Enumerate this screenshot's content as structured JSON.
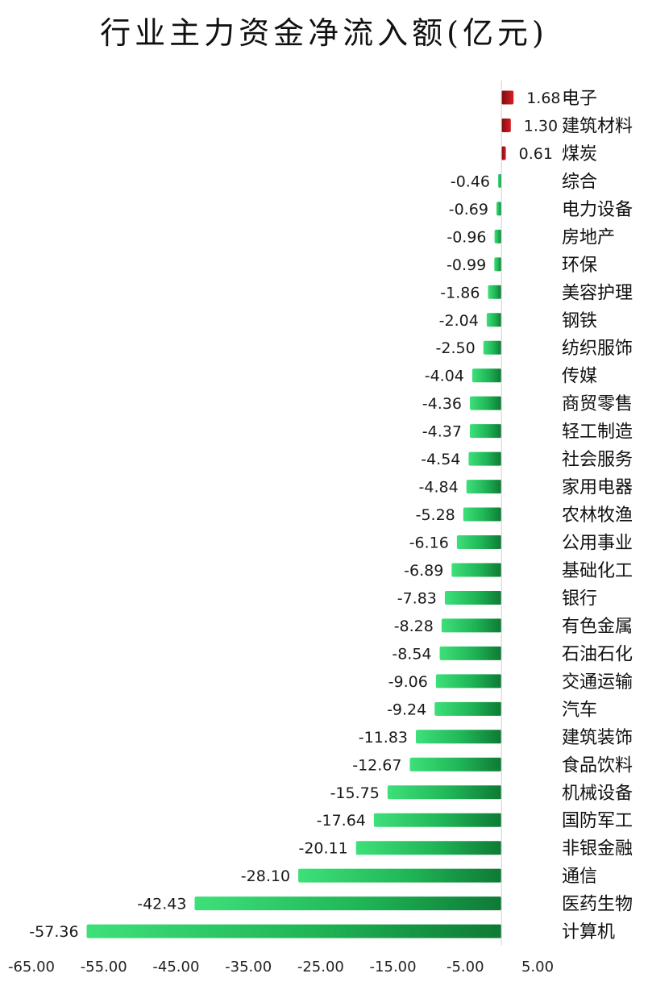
{
  "chart_data": {
    "type": "bar",
    "orientation": "horizontal",
    "title": "行业主力资金净流入额(亿元)",
    "categories": [
      "电子",
      "建筑材料",
      "煤炭",
      "综合",
      "电力设备",
      "房地产",
      "环保",
      "美容护理",
      "钢铁",
      "纺织服饰",
      "传媒",
      "商贸零售",
      "轻工制造",
      "社会服务",
      "家用电器",
      "农林牧渔",
      "公用事业",
      "基础化工",
      "银行",
      "有色金属",
      "石油石化",
      "交通运输",
      "汽车",
      "建筑装饰",
      "食品饮料",
      "机械设备",
      "国防军工",
      "非银金融",
      "通信",
      "医药生物",
      "计算机"
    ],
    "values": [
      1.68,
      1.3,
      0.61,
      -0.46,
      -0.69,
      -0.96,
      -0.99,
      -1.86,
      -2.04,
      -2.5,
      -4.04,
      -4.36,
      -4.37,
      -4.54,
      -4.84,
      -5.28,
      -6.16,
      -6.89,
      -7.83,
      -8.28,
      -8.54,
      -9.06,
      -9.24,
      -11.83,
      -12.67,
      -15.75,
      -17.64,
      -20.11,
      -28.1,
      -42.43,
      -57.36
    ],
    "value_labels": [
      "1.68",
      "1.30",
      "0.61",
      "-0.46",
      "-0.69",
      "-0.96",
      "-0.99",
      "-1.86",
      "-2.04",
      "-2.50",
      "-4.04",
      "-4.36",
      "-4.37",
      "-4.54",
      "-4.84",
      "-5.28",
      "-6.16",
      "-6.89",
      "-7.83",
      "-8.28",
      "-8.54",
      "-9.06",
      "-9.24",
      "-11.83",
      "-12.67",
      "-15.75",
      "-17.64",
      "-20.11",
      "-28.10",
      "-42.43",
      "-57.36"
    ],
    "x_ticks": [
      "-65.00",
      "-55.00",
      "-45.00",
      "-35.00",
      "-25.00",
      "-15.00",
      "-5.00",
      "5.00"
    ],
    "tick_values": [
      -65,
      -55,
      -45,
      -35,
      -25,
      -15,
      -5,
      5
    ],
    "xlim": [
      -65,
      5
    ],
    "xlabel": "",
    "ylabel": "",
    "grid": false,
    "legend": "none",
    "colors": {
      "positive": "#c8161d",
      "positive_dark": "#7e0c10",
      "negative": "#22c45e",
      "negative_dark": "#0e7a35",
      "axis": "#d0d0d0"
    }
  }
}
